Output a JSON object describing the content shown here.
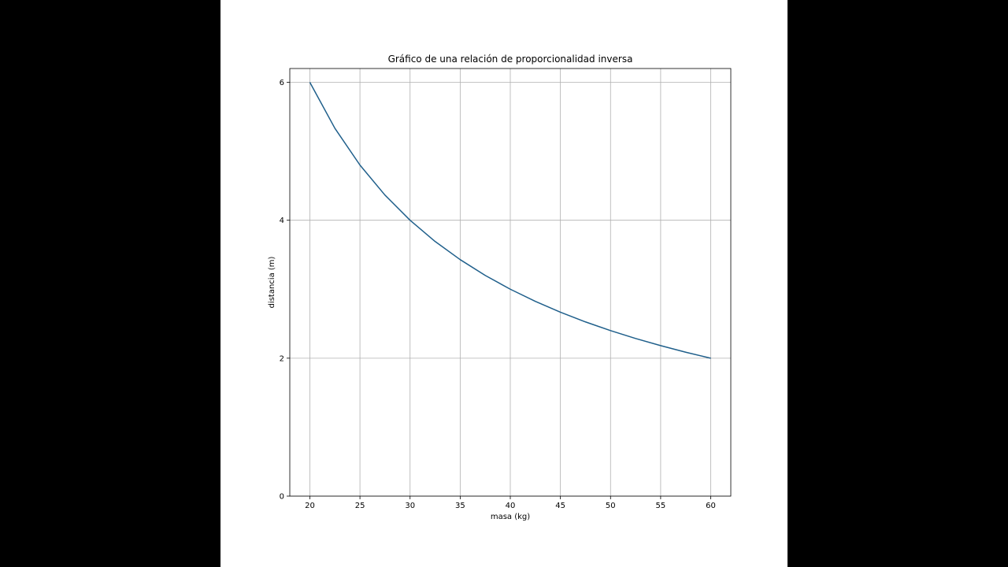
{
  "chart_data": {
    "type": "line",
    "title": "Gráfico de una relación de proporcionalidad inversa",
    "xlabel": "masa (kg)",
    "ylabel": "distancia (m)",
    "xlim": [
      18,
      62
    ],
    "ylim": [
      0,
      6.2
    ],
    "xticks": [
      20,
      25,
      30,
      35,
      40,
      45,
      50,
      55,
      60
    ],
    "yticks": [
      0,
      2,
      4,
      6
    ],
    "grid": true,
    "series": [
      {
        "color": "#1f5f8b",
        "x": [
          20,
          22.5,
          25,
          27.5,
          30,
          32.5,
          35,
          37.5,
          40,
          42.5,
          45,
          47.5,
          50,
          52.5,
          55,
          57.5,
          60
        ],
        "y": [
          6.0,
          5.333,
          4.8,
          4.364,
          4.0,
          3.692,
          3.429,
          3.2,
          3.0,
          2.824,
          2.667,
          2.526,
          2.4,
          2.286,
          2.182,
          2.087,
          2.0
        ]
      }
    ]
  }
}
